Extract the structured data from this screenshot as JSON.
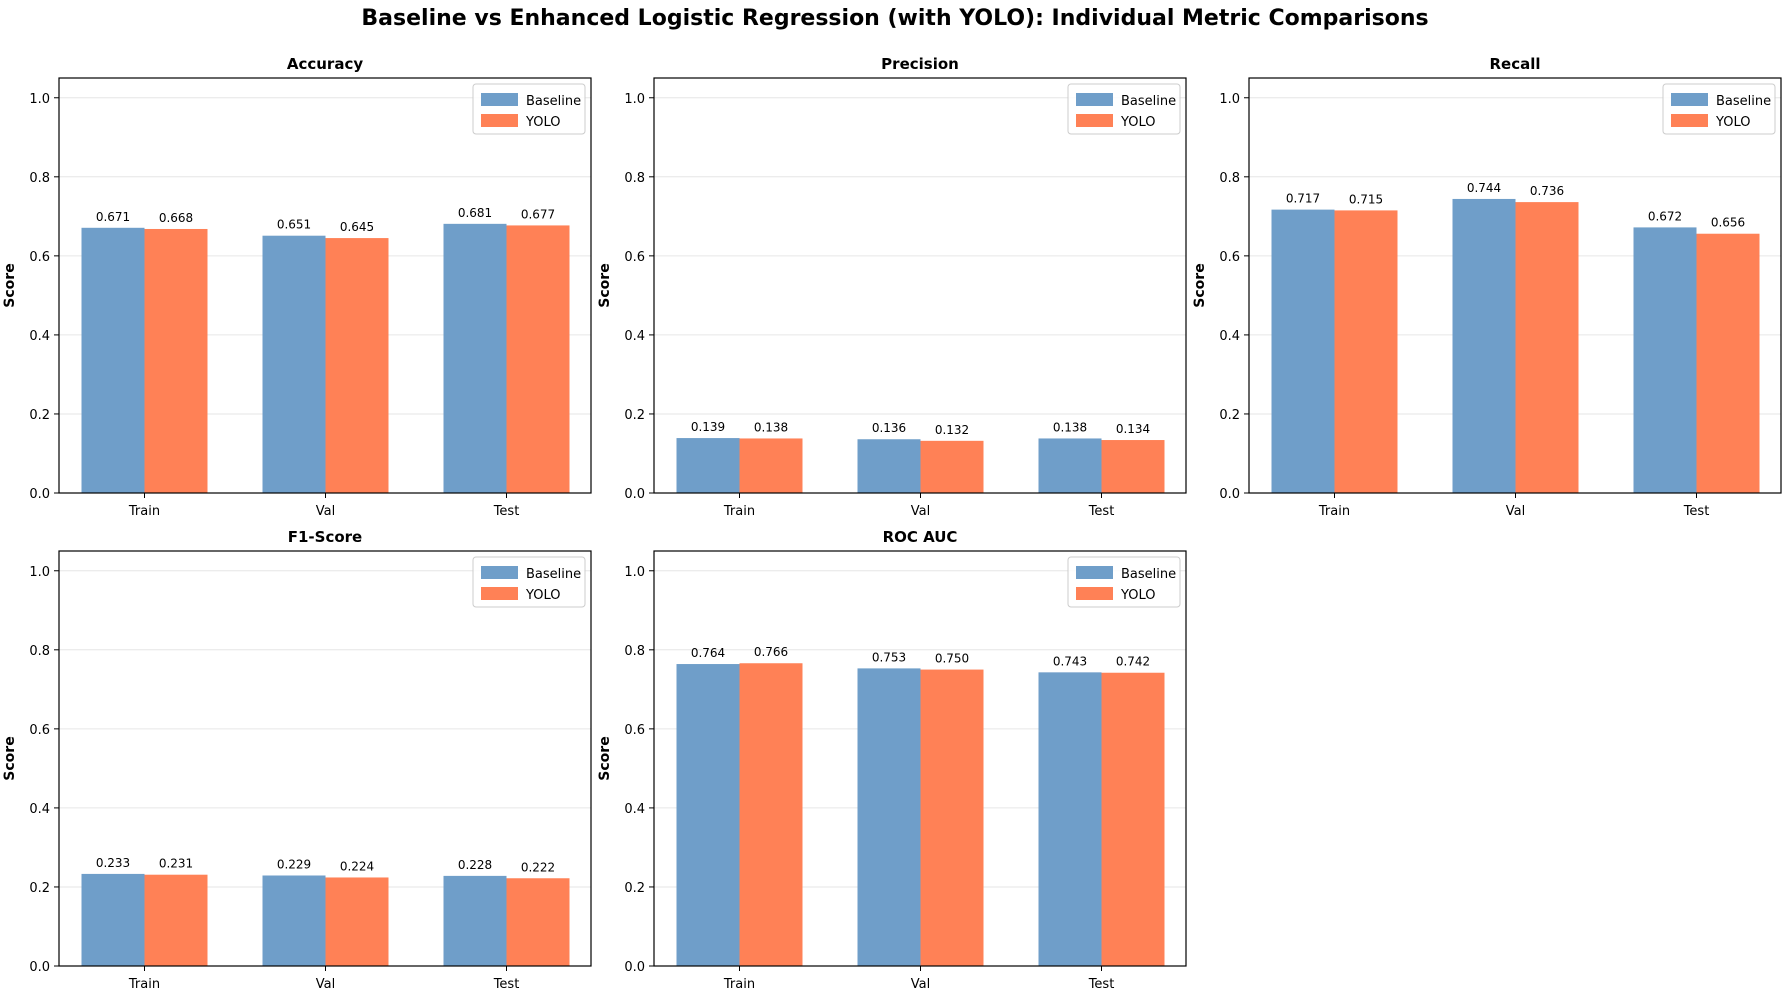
{
  "figure": {
    "title": "Baseline vs Enhanced Logistic Regression (with YOLO): Individual Metric Comparisons"
  },
  "colors": {
    "baseline": "#6f9ec9",
    "yolo": "#ff8156",
    "grid": "#e6e6e6",
    "axis": "#000000"
  },
  "chart_data": [
    {
      "type": "bar",
      "title": "Accuracy",
      "ylabel": "Score",
      "xlabel": "",
      "categories": [
        "Train",
        "Val",
        "Test"
      ],
      "series": [
        {
          "name": "Baseline",
          "values": [
            0.671,
            0.651,
            0.681
          ],
          "labels": [
            "0.671",
            "0.651",
            "0.681"
          ]
        },
        {
          "name": "YOLO",
          "values": [
            0.668,
            0.645,
            0.677
          ],
          "labels": [
            "0.668",
            "0.645",
            "0.677"
          ]
        }
      ],
      "ylim": [
        0,
        1.05
      ],
      "yticks": [
        "0.0",
        "0.2",
        "0.4",
        "0.6",
        "0.8",
        "1.0"
      ],
      "grid": "y",
      "legend": "top-right"
    },
    {
      "type": "bar",
      "title": "Precision",
      "ylabel": "Score",
      "xlabel": "",
      "categories": [
        "Train",
        "Val",
        "Test"
      ],
      "series": [
        {
          "name": "Baseline",
          "values": [
            0.139,
            0.136,
            0.138
          ],
          "labels": [
            "0.139",
            "0.136",
            "0.138"
          ]
        },
        {
          "name": "YOLO",
          "values": [
            0.138,
            0.132,
            0.134
          ],
          "labels": [
            "0.138",
            "0.132",
            "0.134"
          ]
        }
      ],
      "ylim": [
        0,
        1.05
      ],
      "yticks": [
        "0.0",
        "0.2",
        "0.4",
        "0.6",
        "0.8",
        "1.0"
      ],
      "grid": "y",
      "legend": "top-right"
    },
    {
      "type": "bar",
      "title": "Recall",
      "ylabel": "Score",
      "xlabel": "",
      "categories": [
        "Train",
        "Val",
        "Test"
      ],
      "series": [
        {
          "name": "Baseline",
          "values": [
            0.717,
            0.744,
            0.672
          ],
          "labels": [
            "0.717",
            "0.744",
            "0.672"
          ]
        },
        {
          "name": "YOLO",
          "values": [
            0.715,
            0.736,
            0.656
          ],
          "labels": [
            "0.715",
            "0.736",
            "0.656"
          ]
        }
      ],
      "ylim": [
        0,
        1.05
      ],
      "yticks": [
        "0.0",
        "0.2",
        "0.4",
        "0.6",
        "0.8",
        "1.0"
      ],
      "grid": "y",
      "legend": "top-right"
    },
    {
      "type": "bar",
      "title": "F1-Score",
      "ylabel": "Score",
      "xlabel": "",
      "categories": [
        "Train",
        "Val",
        "Test"
      ],
      "series": [
        {
          "name": "Baseline",
          "values": [
            0.233,
            0.229,
            0.228
          ],
          "labels": [
            "0.233",
            "0.229",
            "0.228"
          ]
        },
        {
          "name": "YOLO",
          "values": [
            0.231,
            0.224,
            0.222
          ],
          "labels": [
            "0.231",
            "0.224",
            "0.222"
          ]
        }
      ],
      "ylim": [
        0,
        1.05
      ],
      "yticks": [
        "0.0",
        "0.2",
        "0.4",
        "0.6",
        "0.8",
        "1.0"
      ],
      "grid": "y",
      "legend": "top-right"
    },
    {
      "type": "bar",
      "title": "ROC AUC",
      "ylabel": "Score",
      "xlabel": "",
      "categories": [
        "Train",
        "Val",
        "Test"
      ],
      "series": [
        {
          "name": "Baseline",
          "values": [
            0.764,
            0.753,
            0.743
          ],
          "labels": [
            "0.764",
            "0.753",
            "0.743"
          ]
        },
        {
          "name": "YOLO",
          "values": [
            0.766,
            0.75,
            0.742
          ],
          "labels": [
            "0.766",
            "0.750",
            "0.742"
          ]
        }
      ],
      "ylim": [
        0,
        1.05
      ],
      "yticks": [
        "0.0",
        "0.2",
        "0.4",
        "0.6",
        "0.8",
        "1.0"
      ],
      "grid": "y",
      "legend": "top-right"
    }
  ]
}
